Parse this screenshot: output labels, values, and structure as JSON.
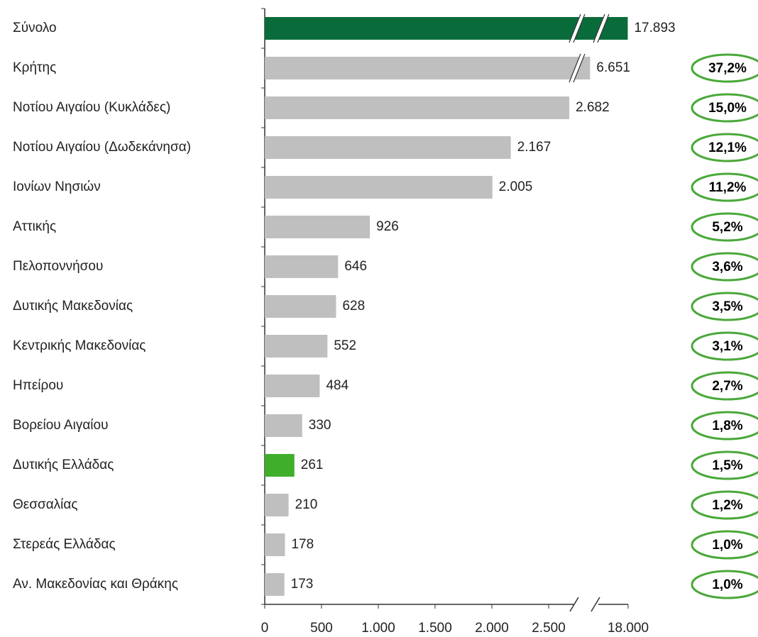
{
  "chart_data": {
    "type": "hbar",
    "categories": [
      "Σύνολο",
      "Κρήτης",
      "Νοτίου Αιγαίου (Κυκλάδες)",
      "Νοτίου Αιγαίου (Δωδεκάνησα)",
      "Ιονίων Νησιών",
      "Αττικής",
      "Πελοποννήσου",
      "Δυτικής Μακεδονίας",
      "Κεντρικής Μακεδονίας",
      "Ηπείρου",
      "Βορείου Αιγαίου",
      "Δυτικής Ελλάδας",
      "Θεσσαλίας",
      "Στερεάς Ελλάδας",
      "Αν. Μακεδονίας και Θράκης"
    ],
    "values": [
      17893,
      6651,
      2682,
      2167,
      2005,
      926,
      646,
      628,
      552,
      484,
      330,
      261,
      210,
      178,
      173
    ],
    "value_labels": [
      "17.893",
      "6.651",
      "2.682",
      "2.167",
      "2.005",
      "926",
      "646",
      "628",
      "552",
      "484",
      "330",
      "261",
      "210",
      "178",
      "173"
    ],
    "colors": [
      "#0a6b3a",
      "#bfbfbf",
      "#bfbfbf",
      "#bfbfbf",
      "#bfbfbf",
      "#bfbfbf",
      "#bfbfbf",
      "#bfbfbf",
      "#bfbfbf",
      "#bfbfbf",
      "#bfbfbf",
      "#3fae2a",
      "#bfbfbf",
      "#bfbfbf",
      "#bfbfbf"
    ],
    "shares": [
      null,
      37.2,
      15.0,
      12.1,
      11.2,
      5.2,
      3.6,
      3.5,
      3.1,
      2.7,
      1.8,
      1.5,
      1.2,
      1.0,
      1.0
    ],
    "share_labels": [
      null,
      "37,2%",
      "15,0%",
      "12,1%",
      "11,2%",
      "5,2%",
      "3,6%",
      "3,5%",
      "3,1%",
      "2,7%",
      "1,8%",
      "1,5%",
      "1,2%",
      "1,0%",
      "1,0%"
    ],
    "share_color": "#4aa83a",
    "xlim": [
      0,
      18000
    ],
    "xticks": [
      0,
      500,
      {
        "value": 1000,
        "label": "1.000"
      },
      {
        "value": 1500,
        "label": "1.500"
      },
      {
        "value": 2000,
        "label": "2.000"
      },
      {
        "value": 2500,
        "label": "2.500"
      },
      {
        "value": 18000,
        "label": "18.000"
      }
    ],
    "axis_break": 2750
  }
}
